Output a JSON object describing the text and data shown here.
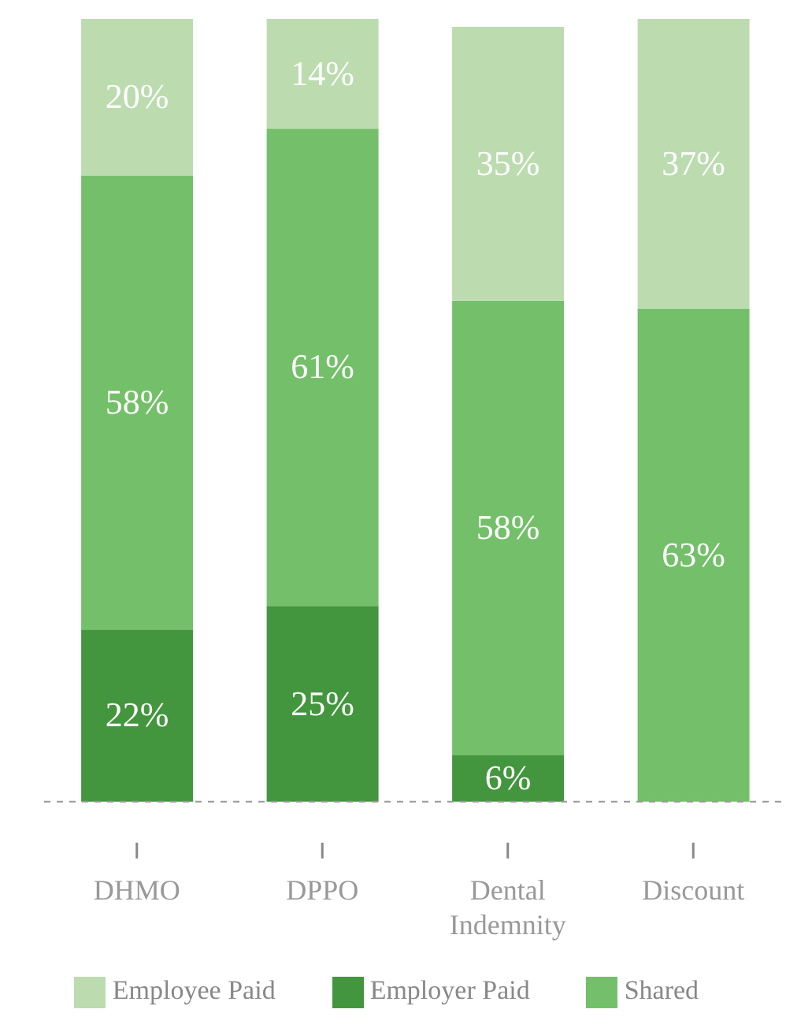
{
  "chart_data": {
    "type": "bar",
    "stacked": true,
    "categories": [
      "DHMO",
      "DPPO",
      "Dental Indemnity",
      "Discount"
    ],
    "series": [
      {
        "name": "Employer Paid",
        "color": "#43963d",
        "values": [
          22,
          25,
          6,
          null
        ],
        "value_labels": [
          "22%",
          "25%",
          "6%",
          null
        ]
      },
      {
        "name": "Shared",
        "color": "#74c06a",
        "values": [
          58,
          61,
          58,
          63
        ],
        "value_labels": [
          "58%",
          "61%",
          "58%",
          "63%"
        ]
      },
      {
        "name": "Employee Paid",
        "color": "#bcdcb0",
        "values": [
          20,
          14,
          35,
          37
        ],
        "value_labels": [
          "20%",
          "14%",
          "35%",
          "37%"
        ]
      }
    ],
    "legend": "bottom",
    "grid": false
  }
}
